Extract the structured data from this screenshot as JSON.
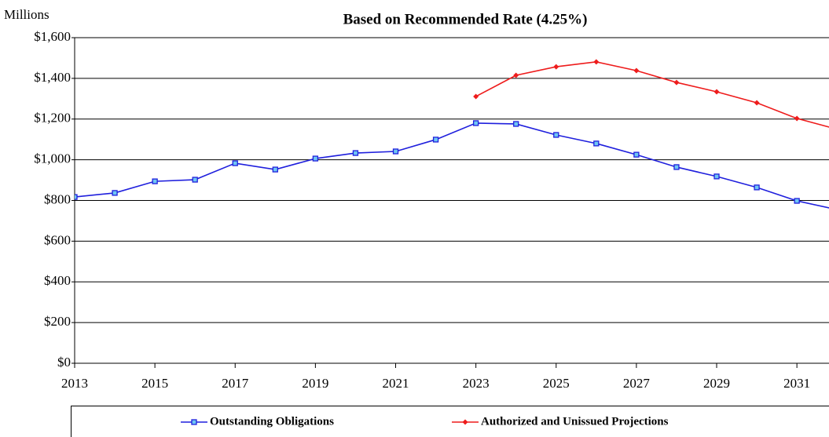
{
  "chart_data": {
    "type": "line",
    "title": "Based on Recommended Rate (4.25%)",
    "y_unit_label": "Millions",
    "x": [
      2013,
      2014,
      2015,
      2016,
      2017,
      2018,
      2019,
      2020,
      2021,
      2022,
      2023,
      2024,
      2025,
      2026,
      2027,
      2028,
      2029,
      2030,
      2031,
      2032
    ],
    "series": [
      {
        "name": "Outstanding Obligations",
        "color": "#1f1fdd",
        "marker": "square",
        "values": [
          817,
          837,
          894,
          902,
          983,
          952,
          1006,
          1033,
          1041,
          1099,
          1180,
          1176,
          1122,
          1080,
          1025,
          964,
          918,
          864,
          798,
          755
        ]
      },
      {
        "name": "Authorized and Unissued Projections",
        "color": "#ee1c1c",
        "marker": "diamond",
        "values": [
          null,
          null,
          null,
          null,
          null,
          null,
          null,
          null,
          null,
          null,
          1311,
          1415,
          1457,
          1481,
          1438,
          1380,
          1334,
          1280,
          1203,
          1150
        ]
      }
    ],
    "xlim": [
      2013,
      2031.8
    ],
    "xticks": [
      2013,
      2015,
      2017,
      2019,
      2021,
      2023,
      2025,
      2027,
      2029,
      2031
    ],
    "ylim": [
      0,
      1600
    ],
    "yticks": [
      {
        "value": 0,
        "label": "$0"
      },
      {
        "value": 200,
        "label": "$200"
      },
      {
        "value": 400,
        "label": "$400"
      },
      {
        "value": 600,
        "label": "$600"
      },
      {
        "value": 800,
        "label": "$800"
      },
      {
        "value": 1000,
        "label": "$1,000"
      },
      {
        "value": 1200,
        "label": "$1,200"
      },
      {
        "value": 1400,
        "label": "$1,400"
      },
      {
        "value": 1600,
        "label": "$1,600"
      }
    ],
    "grid": true
  }
}
